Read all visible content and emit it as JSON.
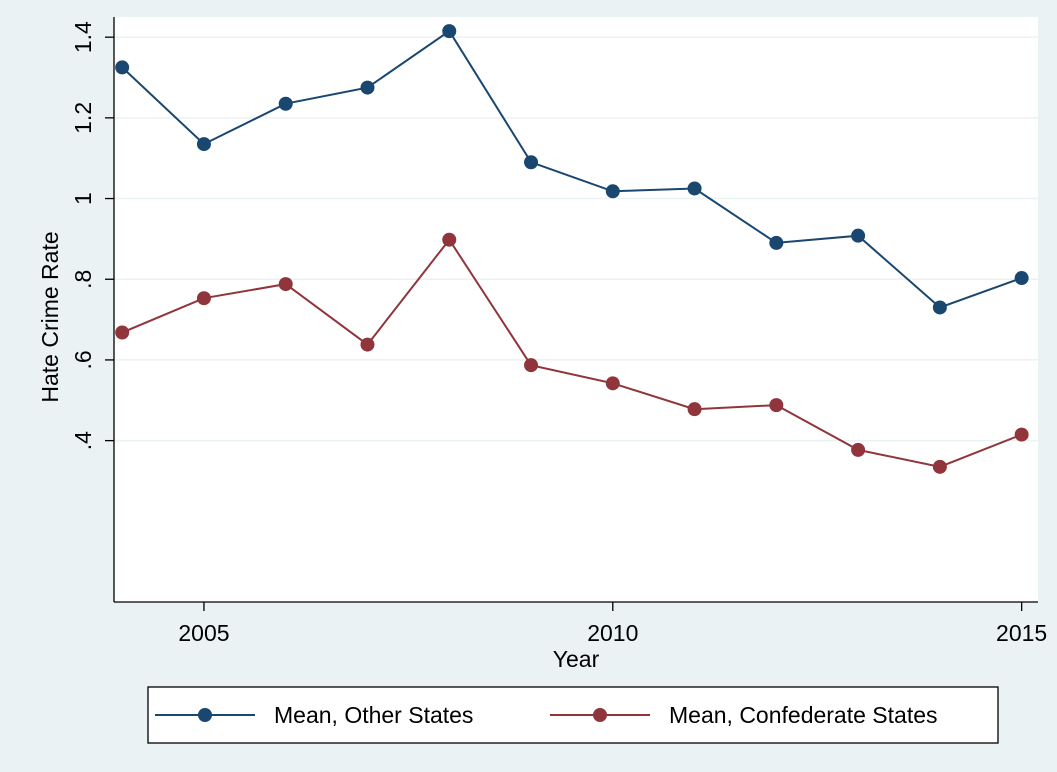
{
  "chart_data": {
    "type": "line",
    "xlabel": "Year",
    "ylabel": "Hate Crime Rate",
    "xlim": [
      2003.9,
      2015.2
    ],
    "ylim": [
      0,
      1.45
    ],
    "grid": true,
    "legend_position": "bottom",
    "x_ticks": [
      2005,
      2010,
      2015
    ],
    "x_tick_labels": [
      "2005",
      "2010",
      "2015"
    ],
    "y_ticks": [
      0.4,
      0.6,
      0.8,
      1.0,
      1.2,
      1.4
    ],
    "y_tick_labels": [
      ".4",
      ".6",
      ".8",
      "1",
      "1.2",
      "1.4"
    ],
    "x": [
      2004,
      2005,
      2006,
      2007,
      2008,
      2009,
      2010,
      2011,
      2012,
      2013,
      2014,
      2015
    ],
    "series": [
      {
        "name": "Mean, Other States",
        "color": "#1a476f",
        "values": [
          1.325,
          1.135,
          1.235,
          1.275,
          1.415,
          1.09,
          1.018,
          1.025,
          0.89,
          0.908,
          0.73,
          0.803
        ]
      },
      {
        "name": "Mean, Confederate States",
        "color": "#90353b",
        "values": [
          0.668,
          0.753,
          0.788,
          0.638,
          0.898,
          0.587,
          0.542,
          0.478,
          0.488,
          0.377,
          0.335,
          0.415
        ]
      }
    ]
  }
}
